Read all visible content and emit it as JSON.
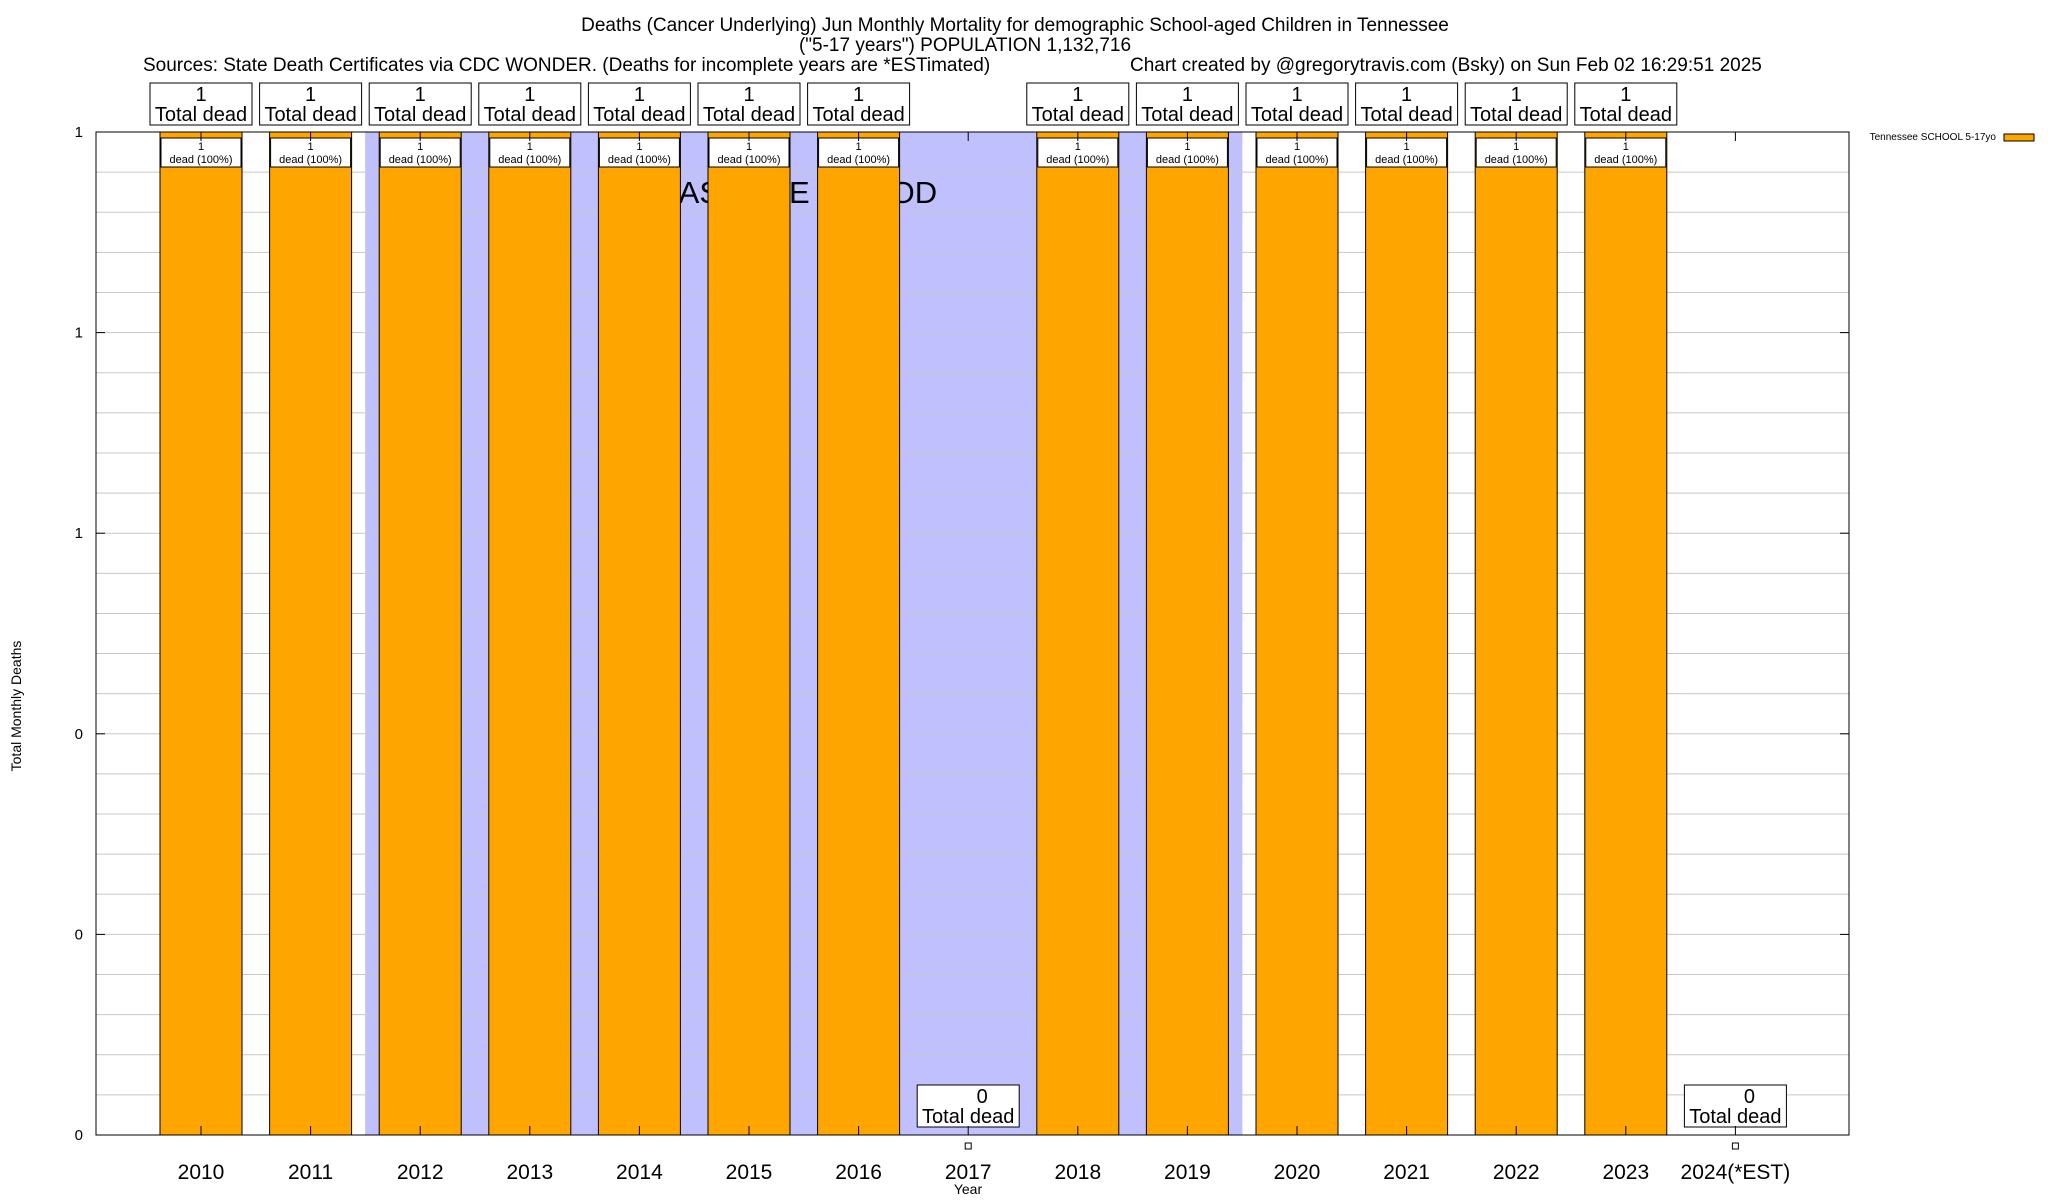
{
  "chart_data": {
    "type": "bar",
    "title_lines": [
      "Deaths (Cancer Underlying) Jun Monthly Mortality for demographic School-aged Children in Tennessee",
      "(\"5-17 years\") POPULATION 1,132,716"
    ],
    "source_note": "Sources: State Death Certificates via CDC WONDER. (Deaths for incomplete years are *ESTimated)",
    "credit_note": "Chart created by @gregorytravis.com (Bsky) on Sun Feb 02 16:29:51 2025",
    "xlabel": "Year",
    "ylabel": "Total Monthly Deaths",
    "ylim": [
      0,
      1
    ],
    "y_tick_labels": [
      "0",
      "0",
      "0",
      "1",
      "1",
      "1"
    ],
    "categories": [
      "2010",
      "2011",
      "2012",
      "2013",
      "2014",
      "2015",
      "2016",
      "2017",
      "2018",
      "2019",
      "2020",
      "2021",
      "2022",
      "2023",
      "2024(*EST)"
    ],
    "series": [
      {
        "name": "Tennessee SCHOOL 5-17yo",
        "color": "#ffa500",
        "values": [
          1,
          1,
          1,
          1,
          1,
          1,
          1,
          0,
          1,
          1,
          1,
          1,
          1,
          1,
          0
        ]
      }
    ],
    "total_labels": [
      "1",
      "1",
      "1",
      "1",
      "1",
      "1",
      "1",
      "0",
      "1",
      "1",
      "1",
      "1",
      "1",
      "1",
      "0"
    ],
    "total_label_suffix": "Total dead",
    "bar_value_labels": [
      "1",
      "1",
      "1",
      "1",
      "1",
      "1",
      "1",
      "",
      "1",
      "1",
      "1",
      "1",
      "1",
      "1",
      ""
    ],
    "bar_pct_label": "dead (100%)",
    "baseline_text": "BASELINE PERIOD",
    "baseline_range": [
      "2012",
      "2019"
    ],
    "baseline_color": "#c0c0ff",
    "grid": true,
    "legend_position": "top-right"
  }
}
